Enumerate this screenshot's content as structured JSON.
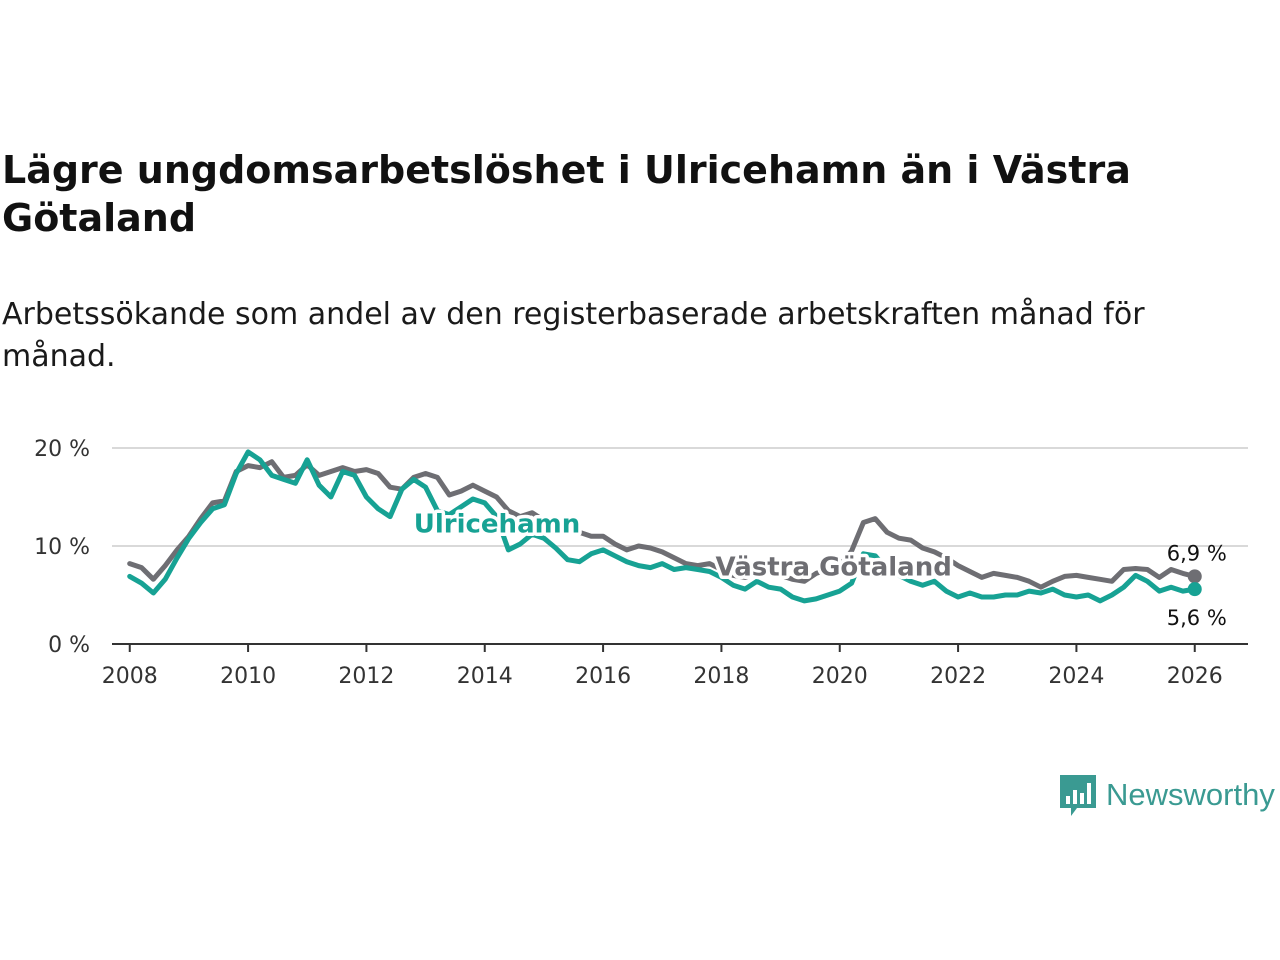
{
  "title": "Lägre ungdomsarbetslöshet i Ulricehamn än i Västra Götaland",
  "subtitle": "Arbetssökande som andel av den registerbaserade arbetskraften månad för månad.",
  "brand": {
    "name": "Newsworthy",
    "color": "#3a9a92"
  },
  "chart_data": {
    "type": "line",
    "title": "Lägre ungdomsarbetslöshet i Ulricehamn än i Västra Götaland",
    "xlabel": "",
    "ylabel": "",
    "xlim": [
      2007.7,
      2026.9
    ],
    "ylim": [
      0,
      20
    ],
    "y_ticks": [
      0,
      10,
      20
    ],
    "y_tick_labels": [
      "0 %",
      "10 %",
      "20 %"
    ],
    "x_ticks": [
      2008,
      2010,
      2012,
      2014,
      2016,
      2018,
      2020,
      2022,
      2024,
      2026
    ],
    "x_tick_labels": [
      "2008",
      "2010",
      "2012",
      "2014",
      "2016",
      "2018",
      "2020",
      "2022",
      "2024",
      "2026"
    ],
    "grid": true,
    "series": [
      {
        "name": "Västra Götaland",
        "color": "#6e6e73",
        "end_label": "6,9 %",
        "points": [
          [
            2008.0,
            8.2
          ],
          [
            2008.2,
            7.8
          ],
          [
            2008.4,
            6.6
          ],
          [
            2008.6,
            8.0
          ],
          [
            2008.8,
            9.6
          ],
          [
            2009.0,
            11.0
          ],
          [
            2009.2,
            12.8
          ],
          [
            2009.4,
            14.4
          ],
          [
            2009.6,
            14.6
          ],
          [
            2009.8,
            17.6
          ],
          [
            2010.0,
            18.2
          ],
          [
            2010.2,
            18.0
          ],
          [
            2010.4,
            18.6
          ],
          [
            2010.6,
            17.0
          ],
          [
            2010.8,
            17.2
          ],
          [
            2011.0,
            18.3
          ],
          [
            2011.2,
            17.2
          ],
          [
            2011.4,
            17.6
          ],
          [
            2011.6,
            18.0
          ],
          [
            2011.8,
            17.6
          ],
          [
            2012.0,
            17.8
          ],
          [
            2012.2,
            17.4
          ],
          [
            2012.4,
            16.0
          ],
          [
            2012.6,
            15.8
          ],
          [
            2012.8,
            17.0
          ],
          [
            2013.0,
            17.4
          ],
          [
            2013.2,
            17.0
          ],
          [
            2013.4,
            15.2
          ],
          [
            2013.6,
            15.6
          ],
          [
            2013.8,
            16.2
          ],
          [
            2014.0,
            15.6
          ],
          [
            2014.2,
            15.0
          ],
          [
            2014.4,
            13.6
          ],
          [
            2014.6,
            13.0
          ],
          [
            2014.8,
            13.4
          ],
          [
            2015.0,
            12.6
          ],
          [
            2015.2,
            12.2
          ],
          [
            2015.4,
            11.8
          ],
          [
            2015.6,
            11.4
          ],
          [
            2015.8,
            11.0
          ],
          [
            2016.0,
            11.0
          ],
          [
            2016.2,
            10.2
          ],
          [
            2016.4,
            9.6
          ],
          [
            2016.6,
            10.0
          ],
          [
            2016.8,
            9.8
          ],
          [
            2017.0,
            9.4
          ],
          [
            2017.2,
            8.8
          ],
          [
            2017.4,
            8.2
          ],
          [
            2017.6,
            8.0
          ],
          [
            2017.8,
            8.2
          ],
          [
            2018.0,
            7.6
          ],
          [
            2018.2,
            7.0
          ],
          [
            2018.4,
            6.8
          ],
          [
            2018.6,
            7.2
          ],
          [
            2018.8,
            7.4
          ],
          [
            2019.0,
            7.0
          ],
          [
            2019.2,
            6.6
          ],
          [
            2019.4,
            6.4
          ],
          [
            2019.6,
            7.2
          ],
          [
            2019.8,
            7.6
          ],
          [
            2020.0,
            8.0
          ],
          [
            2020.2,
            9.5
          ],
          [
            2020.4,
            12.4
          ],
          [
            2020.6,
            12.8
          ],
          [
            2020.8,
            11.4
          ],
          [
            2021.0,
            10.8
          ],
          [
            2021.2,
            10.6
          ],
          [
            2021.4,
            9.8
          ],
          [
            2021.6,
            9.4
          ],
          [
            2021.8,
            8.8
          ],
          [
            2022.0,
            8.0
          ],
          [
            2022.2,
            7.4
          ],
          [
            2022.4,
            6.8
          ],
          [
            2022.6,
            7.2
          ],
          [
            2022.8,
            7.0
          ],
          [
            2023.0,
            6.8
          ],
          [
            2023.2,
            6.4
          ],
          [
            2023.4,
            5.8
          ],
          [
            2023.6,
            6.4
          ],
          [
            2023.8,
            6.9
          ],
          [
            2024.0,
            7.0
          ],
          [
            2024.2,
            6.8
          ],
          [
            2024.4,
            6.6
          ],
          [
            2024.6,
            6.4
          ],
          [
            2024.8,
            7.6
          ],
          [
            2025.0,
            7.7
          ],
          [
            2025.2,
            7.6
          ],
          [
            2025.4,
            6.8
          ],
          [
            2025.6,
            7.6
          ],
          [
            2025.8,
            7.2
          ],
          [
            2026.0,
            6.9
          ]
        ]
      },
      {
        "name": "Ulricehamn",
        "color": "#17a294",
        "end_label": "5,6 %",
        "points": [
          [
            2008.0,
            6.9
          ],
          [
            2008.2,
            6.2
          ],
          [
            2008.4,
            5.2
          ],
          [
            2008.6,
            6.6
          ],
          [
            2008.8,
            8.8
          ],
          [
            2009.0,
            10.8
          ],
          [
            2009.2,
            12.4
          ],
          [
            2009.4,
            13.8
          ],
          [
            2009.6,
            14.2
          ],
          [
            2009.8,
            17.4
          ],
          [
            2010.0,
            19.6
          ],
          [
            2010.2,
            18.8
          ],
          [
            2010.4,
            17.2
          ],
          [
            2010.6,
            16.8
          ],
          [
            2010.8,
            16.4
          ],
          [
            2011.0,
            18.8
          ],
          [
            2011.2,
            16.2
          ],
          [
            2011.4,
            15.0
          ],
          [
            2011.6,
            17.6
          ],
          [
            2011.8,
            17.2
          ],
          [
            2012.0,
            15.0
          ],
          [
            2012.2,
            13.8
          ],
          [
            2012.4,
            13.0
          ],
          [
            2012.6,
            15.8
          ],
          [
            2012.8,
            16.8
          ],
          [
            2013.0,
            16.0
          ],
          [
            2013.2,
            13.6
          ],
          [
            2013.4,
            13.2
          ],
          [
            2013.6,
            14.0
          ],
          [
            2013.8,
            14.8
          ],
          [
            2014.0,
            14.4
          ],
          [
            2014.2,
            13.0
          ],
          [
            2014.4,
            9.6
          ],
          [
            2014.6,
            10.2
          ],
          [
            2014.8,
            11.2
          ],
          [
            2015.0,
            10.8
          ],
          [
            2015.2,
            9.8
          ],
          [
            2015.4,
            8.6
          ],
          [
            2015.6,
            8.4
          ],
          [
            2015.8,
            9.2
          ],
          [
            2016.0,
            9.6
          ],
          [
            2016.2,
            9.0
          ],
          [
            2016.4,
            8.4
          ],
          [
            2016.6,
            8.0
          ],
          [
            2016.8,
            7.8
          ],
          [
            2017.0,
            8.2
          ],
          [
            2017.2,
            7.6
          ],
          [
            2017.4,
            7.8
          ],
          [
            2017.6,
            7.6
          ],
          [
            2017.8,
            7.4
          ],
          [
            2018.0,
            6.8
          ],
          [
            2018.2,
            6.0
          ],
          [
            2018.4,
            5.6
          ],
          [
            2018.6,
            6.4
          ],
          [
            2018.8,
            5.8
          ],
          [
            2019.0,
            5.6
          ],
          [
            2019.2,
            4.8
          ],
          [
            2019.4,
            4.4
          ],
          [
            2019.6,
            4.6
          ],
          [
            2019.8,
            5.0
          ],
          [
            2020.0,
            5.4
          ],
          [
            2020.2,
            6.2
          ],
          [
            2020.4,
            9.2
          ],
          [
            2020.6,
            9.0
          ],
          [
            2020.8,
            7.6
          ],
          [
            2021.0,
            7.0
          ],
          [
            2021.2,
            6.4
          ],
          [
            2021.4,
            6.0
          ],
          [
            2021.6,
            6.4
          ],
          [
            2021.8,
            5.4
          ],
          [
            2022.0,
            4.8
          ],
          [
            2022.2,
            5.2
          ],
          [
            2022.4,
            4.8
          ],
          [
            2022.6,
            4.8
          ],
          [
            2022.8,
            5.0
          ],
          [
            2023.0,
            5.0
          ],
          [
            2023.2,
            5.4
          ],
          [
            2023.4,
            5.2
          ],
          [
            2023.6,
            5.6
          ],
          [
            2023.8,
            5.0
          ],
          [
            2024.0,
            4.8
          ],
          [
            2024.2,
            5.0
          ],
          [
            2024.4,
            4.4
          ],
          [
            2024.6,
            5.0
          ],
          [
            2024.8,
            5.8
          ],
          [
            2025.0,
            7.0
          ],
          [
            2025.2,
            6.4
          ],
          [
            2025.4,
            5.4
          ],
          [
            2025.6,
            5.8
          ],
          [
            2025.8,
            5.4
          ],
          [
            2026.0,
            5.6
          ]
        ]
      }
    ],
    "annotations": [
      {
        "text": "Ulricehamn",
        "series": "Ulricehamn"
      },
      {
        "text": "Västra Götaland",
        "series": "Västra Götaland"
      }
    ]
  }
}
